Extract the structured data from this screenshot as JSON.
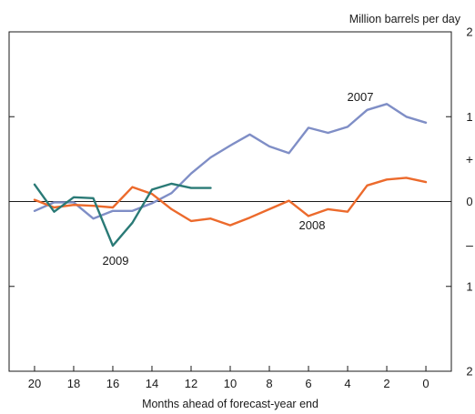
{
  "chart_data": {
    "type": "line",
    "title": "",
    "xlabel": "Months ahead of forecast-year end",
    "ylabel": "Million barrels per day",
    "xlim": [
      21.3,
      -1.3
    ],
    "ylim": [
      -2,
      2
    ],
    "x_ticks": [
      20,
      18,
      16,
      14,
      12,
      10,
      8,
      6,
      4,
      2,
      0
    ],
    "x_tick_labels": [
      "20",
      "18",
      "16",
      "14",
      "12",
      "10",
      "8",
      "6",
      "4",
      "2",
      "0"
    ],
    "y_ticks": [
      -2,
      -1,
      0,
      1,
      2
    ],
    "y_tick_labels": [
      "2",
      "1",
      "0",
      "1",
      "2"
    ],
    "sign_plus": "+",
    "sign_minus": "–",
    "zero_line": true,
    "grid": false,
    "series": [
      {
        "name": "2007",
        "color": "#7f8ec6",
        "x": [
          20,
          19,
          18,
          17,
          16,
          15,
          14,
          13,
          12,
          11,
          10,
          9,
          8,
          7,
          6,
          5,
          4,
          3,
          2,
          1,
          0
        ],
        "values": [
          -0.11,
          -0.01,
          -0.01,
          -0.2,
          -0.11,
          -0.11,
          -0.02,
          0.1,
          0.33,
          0.52,
          0.66,
          0.79,
          0.65,
          0.57,
          0.87,
          0.81,
          0.88,
          1.08,
          1.15,
          1.0,
          0.93
        ]
      },
      {
        "name": "2008",
        "color": "#ec6a2c",
        "x": [
          20,
          19,
          18,
          17,
          16,
          15,
          14,
          13,
          12,
          11,
          10,
          9,
          8,
          7,
          6,
          5,
          4,
          3,
          2,
          1,
          0
        ],
        "values": [
          0.02,
          -0.07,
          -0.04,
          -0.05,
          -0.07,
          0.17,
          0.09,
          -0.09,
          -0.23,
          -0.2,
          -0.28,
          -0.19,
          -0.09,
          0.01,
          -0.17,
          -0.09,
          -0.12,
          0.19,
          0.26,
          0.28,
          0.23
        ]
      },
      {
        "name": "2009",
        "color": "#2a7a76",
        "x": [
          20,
          19,
          18,
          17,
          16,
          15,
          14,
          13,
          12,
          11
        ],
        "values": [
          0.2,
          -0.12,
          0.05,
          0.04,
          -0.52,
          -0.25,
          0.14,
          0.21,
          0.16,
          0.16
        ]
      }
    ],
    "annotations": [
      {
        "text": "2007",
        "series": "2007"
      },
      {
        "text": "2008",
        "series": "2008"
      },
      {
        "text": "2009",
        "series": "2009"
      }
    ]
  }
}
